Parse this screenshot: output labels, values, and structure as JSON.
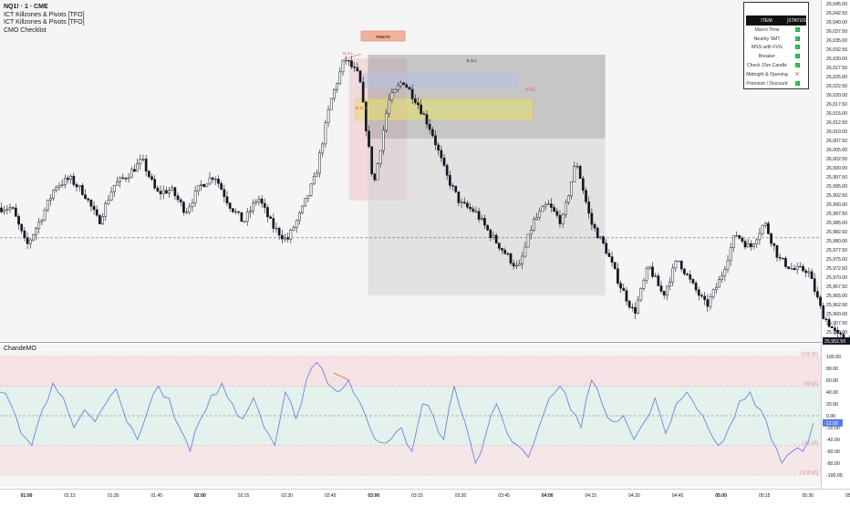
{
  "header": {
    "symbol_line": "NQ1! · 1 · CME",
    "indicators": [
      "ICT Killzones & Pivots [TFO]",
      "ICT Killzones & Pivots [TFO]",
      "CMO Checklist"
    ]
  },
  "annotations": {
    "macro_label": "macro",
    "fvg_label": "FVG",
    "bsl_label": "B.S.L",
    "ssl_label": "S.S.L",
    "mss_label": "M.S.S"
  },
  "checklist": {
    "col_item": "ITEM",
    "col_status": "STATUS",
    "rows": [
      {
        "item": "Macro Time",
        "status": "ok"
      },
      {
        "item": "Nearby SMT",
        "status": "ok"
      },
      {
        "item": "MSS with FVG",
        "status": "ok"
      },
      {
        "item": "Breaker",
        "status": "ok"
      },
      {
        "item": "Check 15m Candle",
        "status": "ok"
      },
      {
        "item": "Midnight & Opening",
        "status": "fail"
      },
      {
        "item": "Premium / Discount",
        "status": "ok"
      }
    ]
  },
  "oscillator": {
    "name": "ChandeMO",
    "level_labels": [
      "(100.00)",
      "(50.00)",
      "(-50.00)",
      "(-100.00)"
    ]
  },
  "colors": {
    "up_candle": "#ffffff",
    "down_candle": "#131722",
    "cmo_line": "#5b7be0",
    "ob_zone": "#f2c6cb",
    "fvg_zone": "#e8e06a",
    "premium_zone": "#9e9e9e"
  },
  "chart_data": [
    {
      "type": "candlestick",
      "title": "NQ1! · 1 · CME",
      "x_ticks": [
        "01:00",
        "01:15",
        "01:30",
        "01:45",
        "02:00",
        "02:15",
        "02:30",
        "02:45",
        "03:00",
        "03:15",
        "03:30",
        "03:45",
        "04:00",
        "04:15",
        "04:30",
        "04:45",
        "05:00",
        "05:15",
        "05:30",
        "05:45"
      ],
      "y_ticks": [
        26045.0,
        26042.5,
        26040.0,
        26037.5,
        26035.0,
        26032.5,
        26030.0,
        26027.5,
        26025.0,
        26022.5,
        26020.0,
        26017.5,
        26015.0,
        26012.5,
        26010.0,
        26007.5,
        26005.0,
        26002.5,
        26000.0,
        25997.5,
        25995.0,
        25992.5,
        25990.0,
        25987.5,
        25985.0,
        25982.5,
        25980.0,
        25977.5,
        25975.0,
        25972.5,
        25970.0,
        25967.5,
        25965.0,
        25962.5,
        25960.0,
        25957.5,
        25955.0,
        25952.5
      ],
      "ylim": [
        25952.5,
        26045.0
      ],
      "last_price": 25952.5,
      "close_path": [
        {
          "t": "00:55",
          "v": 25989.0
        },
        {
          "t": "01:00",
          "v": 25978.5
        },
        {
          "t": "01:05",
          "v": 25986.0
        },
        {
          "t": "01:10",
          "v": 25995.0
        },
        {
          "t": "01:15",
          "v": 25997.0
        },
        {
          "t": "01:20",
          "v": 25993.0
        },
        {
          "t": "01:25",
          "v": 25985.0
        },
        {
          "t": "01:30",
          "v": 25995.0
        },
        {
          "t": "01:35",
          "v": 25998.0
        },
        {
          "t": "01:40",
          "v": 26002.0
        },
        {
          "t": "01:45",
          "v": 25993.0
        },
        {
          "t": "01:50",
          "v": 25994.0
        },
        {
          "t": "01:55",
          "v": 25988.0
        },
        {
          "t": "02:00",
          "v": 25995.0
        },
        {
          "t": "02:05",
          "v": 25998.0
        },
        {
          "t": "02:10",
          "v": 25990.0
        },
        {
          "t": "02:15",
          "v": 25985.0
        },
        {
          "t": "02:20",
          "v": 25992.0
        },
        {
          "t": "02:25",
          "v": 25984.0
        },
        {
          "t": "02:30",
          "v": 25980.0
        },
        {
          "t": "02:35",
          "v": 25988.0
        },
        {
          "t": "02:40",
          "v": 25998.0
        },
        {
          "t": "02:45",
          "v": 26018.0
        },
        {
          "t": "02:50",
          "v": 26030.0
        },
        {
          "t": "02:55",
          "v": 26025.0
        },
        {
          "t": "03:00",
          "v": 25995.0
        },
        {
          "t": "03:05",
          "v": 26018.0
        },
        {
          "t": "03:10",
          "v": 26024.0
        },
        {
          "t": "03:15",
          "v": 26018.0
        },
        {
          "t": "03:20",
          "v": 26010.0
        },
        {
          "t": "03:25",
          "v": 25998.0
        },
        {
          "t": "03:30",
          "v": 25990.0
        },
        {
          "t": "03:35",
          "v": 25988.0
        },
        {
          "t": "03:40",
          "v": 25982.0
        },
        {
          "t": "03:45",
          "v": 25977.0
        },
        {
          "t": "03:50",
          "v": 25972.0
        },
        {
          "t": "03:55",
          "v": 25985.0
        },
        {
          "t": "04:00",
          "v": 25990.0
        },
        {
          "t": "04:05",
          "v": 25985.0
        },
        {
          "t": "04:10",
          "v": 26002.0
        },
        {
          "t": "04:15",
          "v": 25985.0
        },
        {
          "t": "04:20",
          "v": 25978.0
        },
        {
          "t": "04:25",
          "v": 25968.0
        },
        {
          "t": "04:30",
          "v": 25960.0
        },
        {
          "t": "04:35",
          "v": 25973.0
        },
        {
          "t": "04:40",
          "v": 25965.0
        },
        {
          "t": "04:45",
          "v": 25975.0
        },
        {
          "t": "04:50",
          "v": 25968.0
        },
        {
          "t": "04:55",
          "v": 25962.0
        },
        {
          "t": "05:00",
          "v": 25970.0
        },
        {
          "t": "05:05",
          "v": 25982.0
        },
        {
          "t": "05:10",
          "v": 25978.0
        },
        {
          "t": "05:15",
          "v": 25985.0
        },
        {
          "t": "05:20",
          "v": 25975.0
        },
        {
          "t": "05:25",
          "v": 25972.0
        },
        {
          "t": "05:30",
          "v": 25972.0
        },
        {
          "t": "05:35",
          "v": 25960.0
        },
        {
          "t": "05:40",
          "v": 25954.0
        },
        {
          "t": "05:45",
          "v": 25952.5
        }
      ]
    },
    {
      "type": "line",
      "title": "ChandeMO",
      "y_ticks": [
        120.0,
        100.0,
        80.0,
        60.0,
        40.0,
        20.0,
        0.0,
        -20.0,
        -40.0,
        -60.0,
        -80.0,
        -100.0,
        -120.0
      ],
      "ylim": [
        -120,
        120
      ],
      "levels": [
        100,
        50,
        0,
        -50,
        -100
      ],
      "last_value": -12.0,
      "series": [
        {
          "values": [
            40,
            20,
            -30,
            -50,
            10,
            55,
            30,
            -20,
            10,
            -10,
            20,
            45,
            -10,
            -40,
            10,
            50,
            30,
            -20,
            -60,
            -5,
            35,
            55,
            20,
            -5,
            30,
            -20,
            -50,
            40,
            -5,
            60,
            90,
            55,
            40,
            60,
            25,
            -20,
            -45,
            -40,
            -20,
            -60,
            20,
            0,
            -40,
            50,
            -10,
            -80,
            -30,
            20,
            -30,
            -50,
            -70,
            -20,
            30,
            50,
            10,
            -20,
            60,
            20,
            -10,
            0,
            -40,
            -10,
            30,
            -30,
            20,
            40,
            10,
            -20,
            -50,
            -20,
            25,
            40,
            10,
            -40,
            -80,
            -60,
            -60,
            -12
          ]
        }
      ]
    }
  ]
}
